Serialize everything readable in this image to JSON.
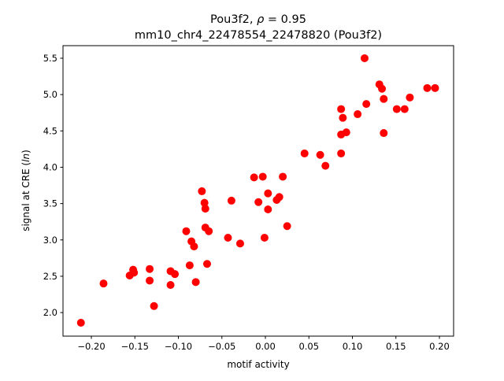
{
  "chart_data": {
    "type": "scatter",
    "title_line1_prefix": "Pou3f2, ",
    "title_rho_symbol": "ρ",
    "title_rho_value": " = 0.95",
    "title_line2": "mm10_chr4_22478554_22478820 (Pou3f2)",
    "xlabel": "motif activity",
    "ylabel_prefix": "signal at CRE (",
    "ylabel_italic": "ln",
    "ylabel_suffix": ")",
    "xlim": [
      -0.2326,
      0.2163
    ],
    "ylim": [
      1.676,
      5.673
    ],
    "xticks": [
      -0.2,
      -0.15,
      -0.1,
      -0.05,
      0.0,
      0.05,
      0.1,
      0.15,
      0.2
    ],
    "xtick_labels": [
      "−0.20",
      "−0.15",
      "−0.10",
      "−0.05",
      "0.00",
      "0.05",
      "0.10",
      "0.15",
      "0.20"
    ],
    "yticks": [
      2.0,
      2.5,
      3.0,
      3.5,
      4.0,
      4.5,
      5.0,
      5.5
    ],
    "ytick_labels": [
      "2.0",
      "2.5",
      "3.0",
      "3.5",
      "4.0",
      "4.5",
      "5.0",
      "5.5"
    ],
    "grid": false,
    "marker_color": "#ff0000",
    "points": [
      [
        -0.212,
        1.86
      ],
      [
        -0.186,
        2.4
      ],
      [
        -0.156,
        2.51
      ],
      [
        -0.152,
        2.59
      ],
      [
        -0.151,
        2.55
      ],
      [
        -0.133,
        2.6
      ],
      [
        -0.133,
        2.44
      ],
      [
        -0.128,
        2.09
      ],
      [
        -0.109,
        2.57
      ],
      [
        -0.109,
        2.38
      ],
      [
        -0.104,
        2.53
      ],
      [
        -0.091,
        3.12
      ],
      [
        -0.087,
        2.65
      ],
      [
        -0.085,
        2.98
      ],
      [
        -0.082,
        2.91
      ],
      [
        -0.08,
        2.42
      ],
      [
        -0.073,
        3.67
      ],
      [
        -0.07,
        3.51
      ],
      [
        -0.069,
        3.43
      ],
      [
        -0.069,
        3.17
      ],
      [
        -0.065,
        3.12
      ],
      [
        -0.067,
        2.67
      ],
      [
        -0.043,
        3.03
      ],
      [
        -0.039,
        3.54
      ],
      [
        -0.029,
        2.95
      ],
      [
        -0.013,
        3.86
      ],
      [
        -0.008,
        3.52
      ],
      [
        -0.003,
        3.87
      ],
      [
        -0.001,
        3.03
      ],
      [
        0.003,
        3.64
      ],
      [
        0.003,
        3.42
      ],
      [
        0.013,
        3.55
      ],
      [
        0.016,
        3.59
      ],
      [
        0.02,
        3.87
      ],
      [
        0.025,
        3.19
      ],
      [
        0.045,
        4.19
      ],
      [
        0.063,
        4.17
      ],
      [
        0.069,
        4.02
      ],
      [
        0.087,
        4.8
      ],
      [
        0.089,
        4.68
      ],
      [
        0.087,
        4.45
      ],
      [
        0.087,
        4.19
      ],
      [
        0.093,
        4.48
      ],
      [
        0.106,
        4.73
      ],
      [
        0.114,
        5.5
      ],
      [
        0.116,
        4.87
      ],
      [
        0.131,
        5.14
      ],
      [
        0.134,
        5.08
      ],
      [
        0.136,
        4.94
      ],
      [
        0.136,
        4.47
      ],
      [
        0.151,
        4.8
      ],
      [
        0.16,
        4.8
      ],
      [
        0.166,
        4.96
      ],
      [
        0.186,
        5.09
      ],
      [
        0.195,
        5.09
      ]
    ]
  }
}
